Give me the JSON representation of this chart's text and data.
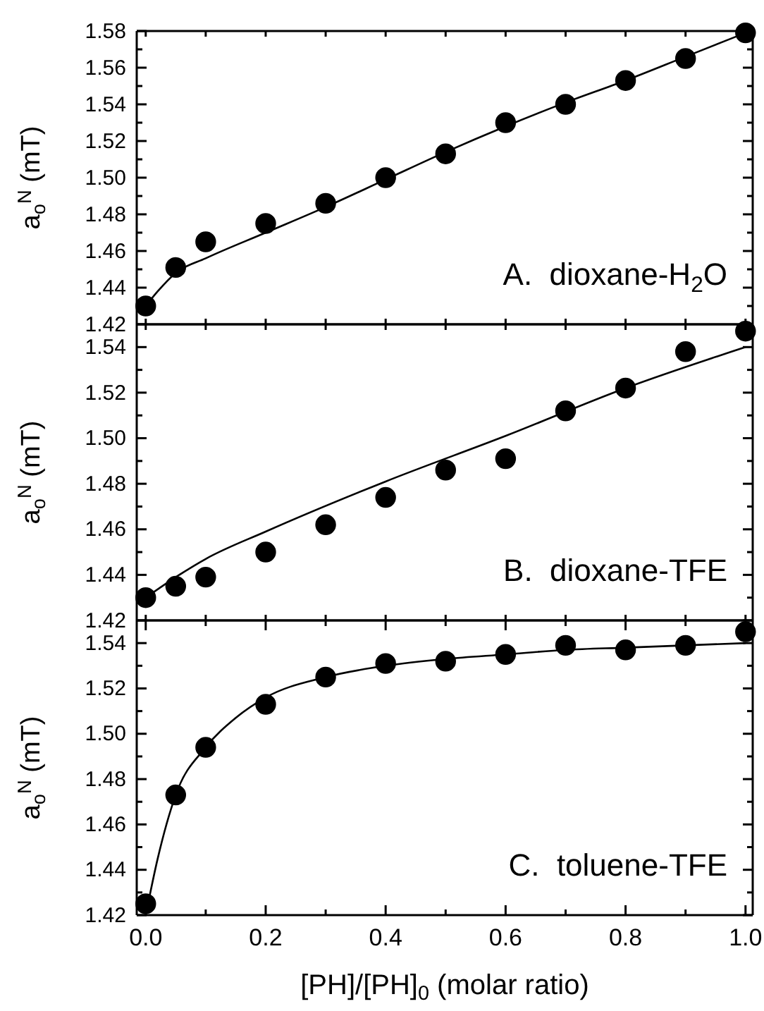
{
  "chart_data": [
    {
      "type": "scatter",
      "ylabel": "a$_{o}$$^{N}$ (mT)",
      "annotations": [
        "A.  dioxane-H$_{2}$O"
      ],
      "tick_labels": "y",
      "xlim": [
        -0.015,
        1.012
      ],
      "ylim": [
        1.42,
        1.58
      ],
      "xticks": [
        {
          "value": 0,
          "label": null
        },
        {
          "value": 0.1,
          "label": null
        },
        {
          "value": 0.2,
          "label": null
        },
        {
          "value": 0.3,
          "label": null
        },
        {
          "value": 0.4,
          "label": null
        },
        {
          "value": 0.5,
          "label": null
        },
        {
          "value": 0.6,
          "label": null
        },
        {
          "value": 0.7,
          "label": null
        },
        {
          "value": 0.8,
          "label": null
        },
        {
          "value": 0.9,
          "label": null
        },
        {
          "value": 1,
          "label": null
        }
      ],
      "yticks": [
        1.42,
        {
          "value": 1.43,
          "label": null
        },
        1.44,
        {
          "value": 1.45,
          "label": null
        },
        1.46,
        {
          "value": 1.47,
          "label": null
        },
        1.48,
        {
          "value": 1.49,
          "label": null
        },
        {
          "value": 1.5,
          "label": "1.50"
        },
        {
          "value": 1.51,
          "label": null
        },
        1.52,
        {
          "value": 1.53,
          "label": null
        },
        1.54,
        {
          "value": 1.55,
          "label": null
        },
        1.56,
        {
          "value": 1.57,
          "label": null
        },
        1.58
      ],
      "series": [
        {
          "marker": "circle",
          "color": "#000000",
          "x": [
            0,
            0.05,
            0.1,
            0.2,
            0.3,
            0.4,
            0.5,
            0.6,
            0.7,
            0.8,
            0.9,
            1.0
          ],
          "values": [
            1.43,
            1.451,
            1.465,
            1.475,
            1.486,
            1.5,
            1.513,
            1.53,
            1.54,
            1.553,
            1.565,
            1.579
          ]
        },
        {
          "type": "line",
          "marker": "none",
          "color": "#000000",
          "x": [
            0,
            0.02,
            0.05,
            0.1,
            0.2,
            0.3,
            0.4,
            0.5,
            0.6,
            0.7,
            0.8,
            0.9,
            1.0
          ],
          "values": [
            1.43,
            1.438,
            1.448,
            1.456,
            1.47,
            1.484,
            1.499,
            1.514,
            1.528,
            1.541,
            1.553,
            1.566,
            1.579
          ]
        }
      ]
    },
    {
      "type": "scatter",
      "ylabel": "a$_{o}$$^{N}$ (mT)",
      "annotations": [
        "B.  dioxane-TFE"
      ],
      "tick_labels": "y",
      "xlim": [
        -0.015,
        1.012
      ],
      "ylim": [
        1.42,
        1.55
      ],
      "xticks": [
        {
          "value": 0,
          "label": null
        },
        {
          "value": 0.1,
          "label": null
        },
        {
          "value": 0.2,
          "label": null
        },
        {
          "value": 0.3,
          "label": null
        },
        {
          "value": 0.4,
          "label": null
        },
        {
          "value": 0.5,
          "label": null
        },
        {
          "value": 0.6,
          "label": null
        },
        {
          "value": 0.7,
          "label": null
        },
        {
          "value": 0.8,
          "label": null
        },
        {
          "value": 0.9,
          "label": null
        },
        {
          "value": 1,
          "label": null
        }
      ],
      "yticks": [
        1.42,
        {
          "value": 1.43,
          "label": null
        },
        1.44,
        {
          "value": 1.45,
          "label": null
        },
        1.46,
        {
          "value": 1.47,
          "label": null
        },
        1.48,
        {
          "value": 1.49,
          "label": null
        },
        {
          "value": 1.5,
          "label": "1.50"
        },
        {
          "value": 1.51,
          "label": null
        },
        1.52,
        {
          "value": 1.53,
          "label": null
        },
        1.54
      ],
      "series": [
        {
          "marker": "circle",
          "color": "#000000",
          "x": [
            0,
            0.05,
            0.1,
            0.2,
            0.3,
            0.4,
            0.5,
            0.6,
            0.7,
            0.8,
            0.9,
            1.0
          ],
          "values": [
            1.43,
            1.435,
            1.439,
            1.45,
            1.462,
            1.474,
            1.486,
            1.491,
            1.512,
            1.522,
            1.538,
            1.547
          ]
        },
        {
          "type": "line",
          "marker": "none",
          "color": "#000000",
          "x": [
            0,
            0.05,
            0.1,
            0.2,
            0.4,
            0.6,
            0.8,
            1.0
          ],
          "values": [
            1.43,
            1.439,
            1.447,
            1.459,
            1.481,
            1.501,
            1.522,
            1.54
          ]
        }
      ]
    },
    {
      "type": "scatter",
      "ylabel": "a$_{o}$$^{N}$ (mT)",
      "xlabel": "[PH]/[PH]$_{0}$ (molar ratio)",
      "annotations": [
        "C.  toluene-TFE"
      ],
      "xlim": [
        -0.015,
        1.012
      ],
      "ylim": [
        1.42,
        1.55
      ],
      "xticks": [
        {
          "value": 0,
          "label": "0.0"
        },
        {
          "value": 0.1,
          "label": null
        },
        0.2,
        {
          "value": 0.3,
          "label": null
        },
        0.4,
        {
          "value": 0.5,
          "label": null
        },
        0.6,
        {
          "value": 0.7,
          "label": null
        },
        0.8,
        {
          "value": 0.9,
          "label": null
        },
        {
          "value": 1,
          "label": "1.0"
        }
      ],
      "yticks": [
        1.42,
        {
          "value": 1.43,
          "label": null
        },
        1.44,
        {
          "value": 1.45,
          "label": null
        },
        1.46,
        {
          "value": 1.47,
          "label": null
        },
        1.48,
        {
          "value": 1.49,
          "label": null
        },
        {
          "value": 1.5,
          "label": "1.50"
        },
        {
          "value": 1.51,
          "label": null
        },
        1.52,
        {
          "value": 1.53,
          "label": null
        },
        1.54
      ],
      "series": [
        {
          "marker": "circle",
          "color": "#000000",
          "x": [
            0,
            0.05,
            0.1,
            0.2,
            0.3,
            0.4,
            0.5,
            0.6,
            0.7,
            0.8,
            0.9,
            1.0
          ],
          "values": [
            1.425,
            1.473,
            1.494,
            1.513,
            1.525,
            1.531,
            1.532,
            1.535,
            1.539,
            1.537,
            1.539,
            1.545
          ]
        },
        {
          "type": "line",
          "marker": "none",
          "color": "#000000",
          "x": [
            0,
            0.02,
            0.05,
            0.1,
            0.15,
            0.2,
            0.3,
            0.4,
            0.5,
            0.6,
            0.7,
            0.8,
            0.9,
            1.0
          ],
          "values": [
            1.42,
            1.445,
            1.473,
            1.494,
            1.507,
            1.516,
            1.525,
            1.53,
            1.533,
            1.535,
            1.537,
            1.538,
            1.539,
            1.54
          ]
        }
      ]
    }
  ]
}
